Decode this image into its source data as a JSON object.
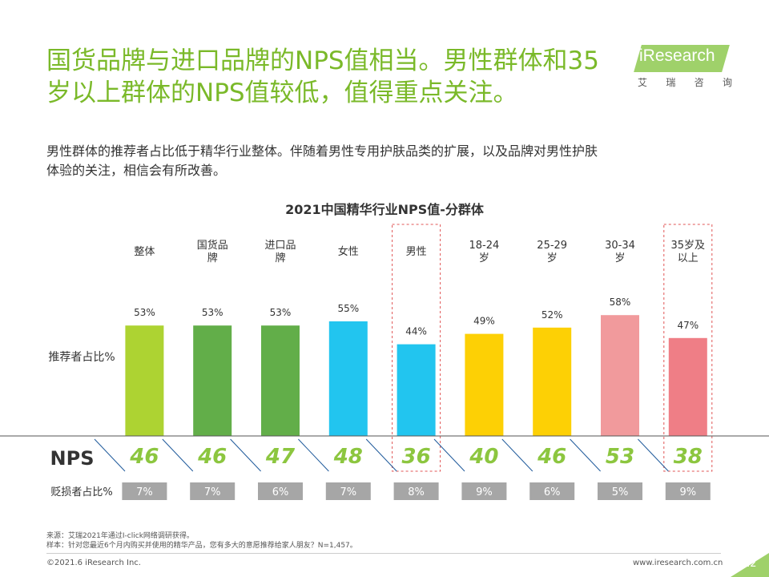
{
  "headline": {
    "line1": "国货品牌与进口品牌的NPS值相当。男性群体和35",
    "line2": "岁以上群体的NPS值较低，值得重点关注。"
  },
  "logo": {
    "main": "iResearch",
    "sub": [
      "艾",
      "瑞",
      "咨",
      "询"
    ]
  },
  "subtitle": {
    "line1": "男性群体的推荐者占比低于精华行业整体。伴随着男性专用护肤品类的扩展，以及品牌对男性护肤",
    "line2": "体验的关注，相信会有所改善。"
  },
  "chart_data": {
    "type": "bar",
    "title": "2021中国精华行业NPS值-分群体",
    "ylabel": "推荐者占比%",
    "categories": [
      [
        "整体"
      ],
      [
        "国货品",
        "牌"
      ],
      [
        "进口品",
        "牌"
      ],
      [
        "女性"
      ],
      [
        "男性"
      ],
      [
        "18-24",
        "岁"
      ],
      [
        "25-29",
        "岁"
      ],
      [
        "30-34",
        "岁"
      ],
      [
        "35岁及",
        "以上"
      ]
    ],
    "series": [
      {
        "values": [
          53,
          53,
          53,
          55,
          44,
          49,
          52,
          58,
          47
        ],
        "value_labels": [
          "53%",
          "53%",
          "53%",
          "55%",
          "44%",
          "49%",
          "52%",
          "58%",
          "47%"
        ]
      }
    ],
    "bar_colors": [
      "#add332",
      "#62ae49",
      "#62ae49",
      "#22c5ef",
      "#22c5ef",
      "#fdd005",
      "#fdd005",
      "#f19a9c",
      "#ef7e86"
    ],
    "highlighted": [
      "男性",
      "35岁及以上"
    ],
    "nps_label": "NPS",
    "nps_values": [
      "46",
      "46",
      "47",
      "48",
      "36",
      "40",
      "46",
      "53",
      "38"
    ],
    "detractor_label": "贬损者占比%",
    "detractor_values": [
      "7%",
      "7%",
      "6%",
      "7%",
      "8%",
      "9%",
      "6%",
      "5%",
      "9%"
    ]
  },
  "colors": {
    "accent": "#7ab929",
    "nps_text": "#8cc63f",
    "highlight_box": "#e05555",
    "detractor_box": "#a6a6a6"
  },
  "footer": {
    "source": "来源：艾瑞2021年通过I-click网络调研获得。",
    "sample": "样本：针对您最近6个月内购买并使用的精华产品，您有多大的意愿推荐给家人朋友？N=1,457。",
    "copyright": "©2021.6 iResearch Inc.",
    "website": "www.iresearch.com.cn",
    "page": "22"
  }
}
